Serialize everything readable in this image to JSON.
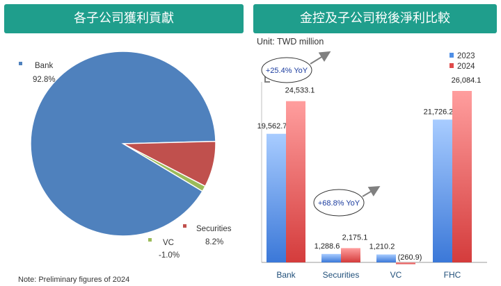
{
  "left_panel": {
    "title": "各子公司獲利貢獻"
  },
  "right_panel": {
    "title": "金控及子公司稅後淨利比較",
    "unit": "Unit: TWD million"
  },
  "note": "Note: Preliminary figures of 2024",
  "colors": {
    "banner": "#1f9e8c",
    "bank": "#4f81bd",
    "securities": "#c0504d",
    "vc": "#9bbb59",
    "bar_2023": "#6fa8f0",
    "bar_2024": "#ef6f6f"
  },
  "chart_data": [
    {
      "type": "pie",
      "title": "各子公司獲利貢獻",
      "slices": [
        {
          "name": "Bank",
          "value": 92.8,
          "label": "92.8%",
          "color": "#4f81bd"
        },
        {
          "name": "Securities",
          "value": 8.2,
          "label": "8.2%",
          "color": "#c0504d"
        },
        {
          "name": "VC",
          "value": -1.0,
          "label": "-1.0%",
          "color": "#9bbb59"
        }
      ]
    },
    {
      "type": "bar",
      "title": "金控及子公司稅後淨利比較",
      "unit": "Unit: TWD million",
      "categories": [
        "Bank",
        "Securities",
        "VC",
        "FHC"
      ],
      "series": [
        {
          "name": "2023",
          "values": [
            19562.7,
            1288.6,
            1210.2,
            21726.2
          ],
          "labels": [
            "19,562.7",
            "1,288.6",
            "1,210.2",
            "21,726.2"
          ]
        },
        {
          "name": "2024",
          "values": [
            24533.1,
            2175.1,
            -260.9,
            26084.1
          ],
          "labels": [
            "24,533.1",
            "2,175.1",
            "(260.9)",
            "26,084.1"
          ]
        }
      ],
      "annotations": [
        "+25.4% YoY",
        "+68.8% YoY"
      ],
      "legend_position": "top-right"
    }
  ]
}
